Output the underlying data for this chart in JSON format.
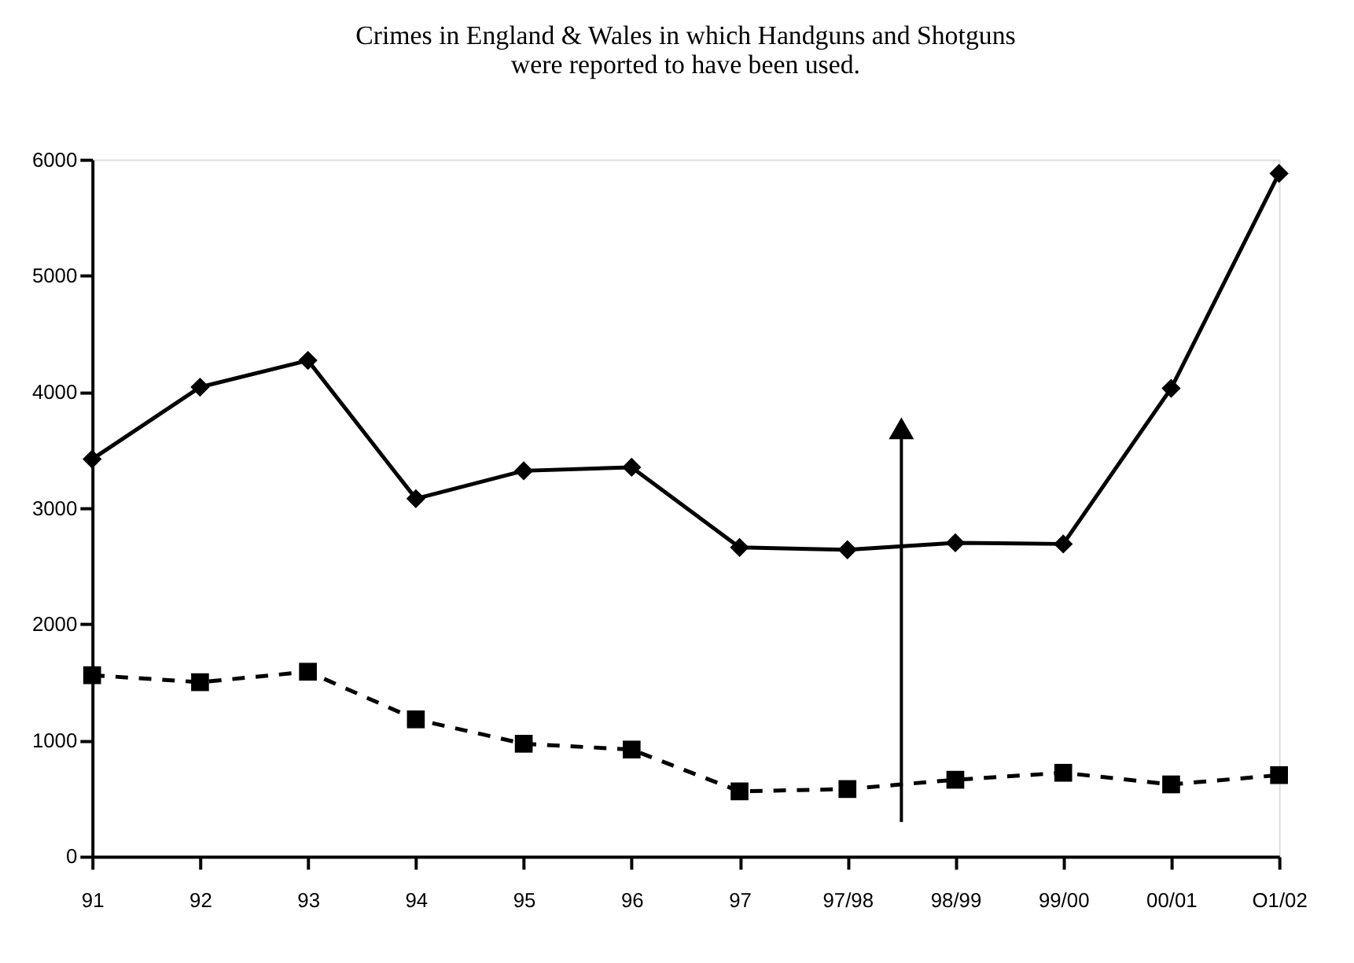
{
  "chart_data": {
    "type": "line",
    "title": [
      "Crimes in England & Wales in which Handguns and Shotguns",
      "were reported to have been used."
    ],
    "categories": [
      "91",
      "92",
      "93",
      "94",
      "95",
      "96",
      "97",
      "97/98",
      "98/99",
      "99/00",
      "00/01",
      "O1/02"
    ],
    "series": [
      {
        "color": "#000000",
        "marker": "diamond",
        "line_style": "solid",
        "values": [
          3420,
          4040,
          4270,
          3080,
          3320,
          3350,
          2660,
          2640,
          2700,
          2690,
          4030,
          5880
        ]
      },
      {
        "color": "#000000",
        "marker": "square",
        "line_style": "dashed",
        "values": [
          1560,
          1500,
          1590,
          1180,
          970,
          920,
          560,
          580,
          660,
          720,
          620,
          700
        ]
      }
    ],
    "ylim": [
      0,
      6000
    ],
    "yticks": [
      0,
      1000,
      2000,
      3000,
      4000,
      5000,
      6000
    ],
    "grid": false
  }
}
